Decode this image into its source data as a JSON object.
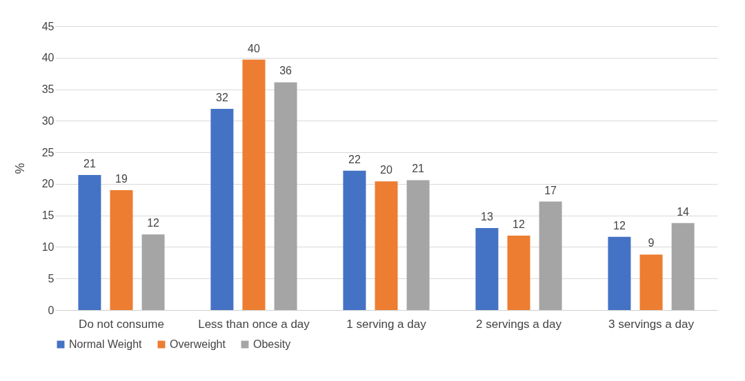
{
  "chart_data": {
    "type": "bar",
    "ylabel": "%",
    "categories": [
      "Do not consume",
      "Less than once a day",
      "1 serving a day",
      "2 servings a day",
      "3 servings a day"
    ],
    "series": [
      {
        "name": "Normal Weight",
        "color": "#4472c4",
        "values": [
          21.4,
          31.9,
          22.1,
          13.0,
          11.6
        ],
        "value_labels": [
          "21",
          "32",
          "22",
          "13",
          "12"
        ]
      },
      {
        "name": "Overweight",
        "color": "#ed7d31",
        "values": [
          19.0,
          39.7,
          20.4,
          11.8,
          8.8
        ],
        "value_labels": [
          "19",
          "40",
          "20",
          "12",
          "9"
        ]
      },
      {
        "name": "Obesity",
        "color": "#a5a5a5",
        "values": [
          12.0,
          36.1,
          20.6,
          17.2,
          13.8
        ],
        "value_labels": [
          "12",
          "36",
          "21",
          "17",
          "14"
        ]
      }
    ],
    "ylim": [
      0,
      45
    ],
    "yticks": [
      0,
      5,
      10,
      15,
      20,
      25,
      30,
      35,
      40,
      45
    ],
    "grid": "y",
    "legend": "bottom"
  }
}
